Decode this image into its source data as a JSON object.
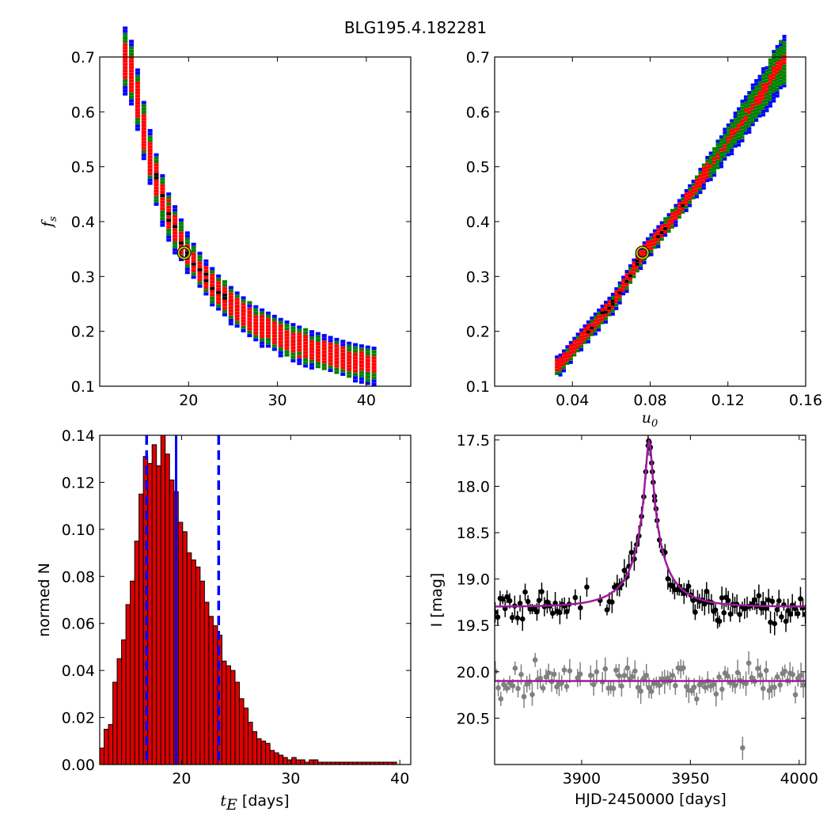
{
  "figure": {
    "title": "BLG195.4.182281"
  },
  "chart_data": [
    {
      "id": "fs_vs_tE",
      "type": "heatmap",
      "ylabel": "f_s",
      "xlabel": "",
      "xlim": [
        10,
        45
      ],
      "ylim": [
        0.1,
        0.7
      ],
      "xticks": [
        20,
        30,
        40
      ],
      "yticks": [
        0.1,
        0.2,
        0.3,
        0.4,
        0.5,
        0.6,
        0.7
      ],
      "ytick_labels": [
        "0.1",
        "0.2",
        "0.3",
        "0.4",
        "0.5",
        "0.6",
        "0.7"
      ],
      "contour_colors": {
        "outer": "#0000ff",
        "middle": "#008000",
        "inner": "#ff0000",
        "core": "#000000"
      },
      "ridge": [
        [
          13,
          0.69
        ],
        [
          14,
          0.62
        ],
        [
          15,
          0.54
        ],
        [
          16,
          0.48
        ],
        [
          17,
          0.43
        ],
        [
          18,
          0.39
        ],
        [
          19.5,
          0.345
        ],
        [
          21,
          0.31
        ],
        [
          23,
          0.27
        ],
        [
          25,
          0.24
        ],
        [
          27,
          0.215
        ],
        [
          30,
          0.19
        ],
        [
          33,
          0.17
        ],
        [
          36,
          0.155
        ],
        [
          38,
          0.145
        ],
        [
          40.5,
          0.137
        ]
      ],
      "best_fit": {
        "x": 19.5,
        "y": 0.343,
        "marker_color": "#c8c800"
      }
    },
    {
      "id": "fs_vs_u0",
      "type": "heatmap",
      "xlabel": "u_0",
      "ylabel": "",
      "xlim": [
        0.0,
        0.16
      ],
      "ylim": [
        0.1,
        0.7
      ],
      "xticks": [
        0.04,
        0.08,
        0.12,
        0.16
      ],
      "xtick_labels": [
        "0.04",
        "0.08",
        "0.12",
        "0.16"
      ],
      "yticks": [
        0.1,
        0.2,
        0.3,
        0.4,
        0.5,
        0.6,
        0.7
      ],
      "ytick_labels": [
        "0.1",
        "0.2",
        "0.3",
        "0.4",
        "0.5",
        "0.6",
        "0.7"
      ],
      "ridge": [
        [
          0.032,
          0.135
        ],
        [
          0.045,
          0.19
        ],
        [
          0.06,
          0.25
        ],
        [
          0.076,
          0.343
        ],
        [
          0.09,
          0.4
        ],
        [
          0.1,
          0.45
        ],
        [
          0.11,
          0.5
        ],
        [
          0.12,
          0.55
        ],
        [
          0.13,
          0.6
        ],
        [
          0.14,
          0.65
        ],
        [
          0.147,
          0.69
        ]
      ],
      "best_fit": {
        "x": 0.076,
        "y": 0.343,
        "marker_color": "#c8c800"
      }
    },
    {
      "id": "tE_histogram",
      "type": "bar",
      "xlabel": "t_E",
      "xlabel_suffix": "[days]",
      "ylabel": "normed N",
      "xlim": [
        12.5,
        41
      ],
      "ylim": [
        0.0,
        0.14
      ],
      "xticks": [
        20,
        30,
        40
      ],
      "yticks": [
        0.0,
        0.02,
        0.04,
        0.06,
        0.08,
        0.1,
        0.12,
        0.14
      ],
      "ytick_labels": [
        "0.00",
        "0.02",
        "0.04",
        "0.06",
        "0.08",
        "0.10",
        "0.12",
        "0.14"
      ],
      "bin_start": 12.5,
      "bin_width": 0.4,
      "values": [
        0.007,
        0.015,
        0.017,
        0.035,
        0.045,
        0.053,
        0.068,
        0.078,
        0.095,
        0.115,
        0.131,
        0.128,
        0.136,
        0.127,
        0.14,
        0.132,
        0.121,
        0.116,
        0.103,
        0.099,
        0.09,
        0.087,
        0.084,
        0.078,
        0.069,
        0.063,
        0.059,
        0.055,
        0.044,
        0.042,
        0.04,
        0.035,
        0.028,
        0.024,
        0.018,
        0.014,
        0.011,
        0.01,
        0.009,
        0.006,
        0.005,
        0.004,
        0.003,
        0.002,
        0.003,
        0.002,
        0.002,
        0.001,
        0.002,
        0.002,
        0.001,
        0.001,
        0.001,
        0.001,
        0.001,
        0.001,
        0.001,
        0.001,
        0.001,
        0.001,
        0.001,
        0.001,
        0.001,
        0.001,
        0.001,
        0.001,
        0.001,
        0.001
      ],
      "bar_color": "#dd0000",
      "median": 19.5,
      "interval": [
        16.8,
        23.4
      ],
      "line_color": "#0000ff"
    },
    {
      "id": "light_curve",
      "type": "scatter",
      "xlabel": "HJD-2450000 [days]",
      "ylabel": "I [mag]",
      "xlim": [
        3860,
        4003
      ],
      "ylim": [
        21.0,
        17.45
      ],
      "inverted_y": true,
      "xticks": [
        3900,
        3950,
        4000
      ],
      "yticks": [
        17.5,
        18.0,
        18.5,
        19.0,
        19.5,
        20.0,
        20.5
      ],
      "ytick_labels": [
        "17.5",
        "18.0",
        "18.5",
        "19.0",
        "19.5",
        "20.0",
        "20.5"
      ],
      "model": {
        "t0": 3931.0,
        "tE": 19.5,
        "u0": 0.076,
        "fs": 0.343,
        "baseline": 19.3,
        "color": "#9e1a9e"
      },
      "data_series": {
        "name": "",
        "color": "#000000",
        "baseline": 19.3,
        "scatter": 0.15
      },
      "residual_series": {
        "name": "",
        "color": "#808080",
        "baseline": 20.1,
        "scatter": 0.18
      },
      "residual_line": 20.1
    }
  ]
}
